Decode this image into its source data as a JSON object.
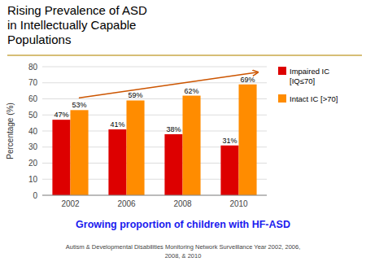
{
  "chart_data": {
    "type": "bar",
    "title": "Rising Prevalence of ASD\nin Intellectually Capable\nPopulations",
    "subtitle": "Growing proportion of children with HF-ASD",
    "footnote": "Autism & Developmental Disabilities Monitoring Network Surveillance Year 2002, 2006,\n2008, & 2010",
    "y_label": "Percentage (%)",
    "categories": [
      "2002",
      "2006",
      "2008",
      "2010"
    ],
    "series": [
      {
        "name": "Impaired IC\n[IQ≤70]",
        "color": "#dd0000",
        "values": [
          47,
          41,
          38,
          31
        ],
        "value_labels": [
          "47%",
          "41%",
          "38%",
          "31%"
        ]
      },
      {
        "name": "Intact IC [>70]",
        "color": "#ff8c00",
        "values": [
          53,
          59,
          62,
          69
        ],
        "value_labels": [
          "53%",
          "59%",
          "62%",
          "69%"
        ]
      }
    ],
    "ylim": [
      0,
      80
    ],
    "yticks": [
      0,
      10,
      20,
      30,
      40,
      50,
      60,
      70,
      80
    ],
    "grid": true,
    "legend": "right",
    "data_labels": true
  }
}
